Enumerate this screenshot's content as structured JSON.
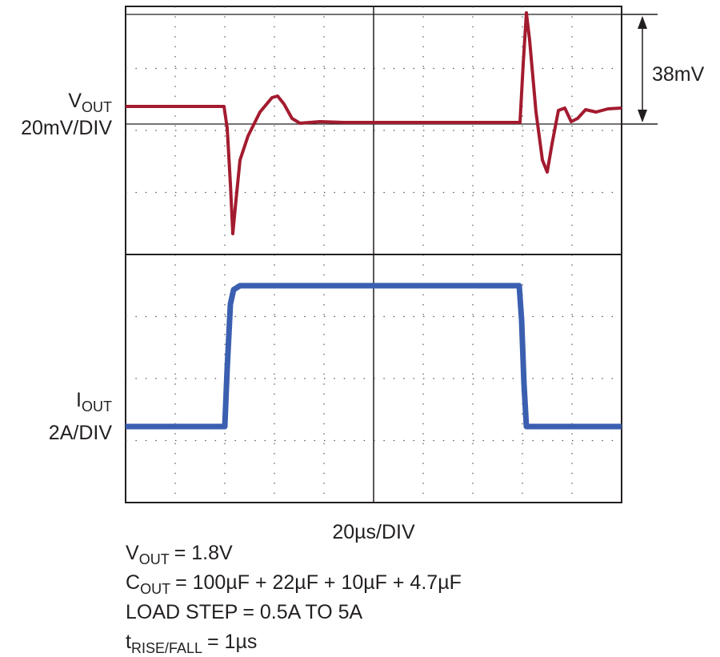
{
  "labels": {
    "vout": {
      "symbol": "V",
      "subscript": "OUT",
      "scale": "20mV/DIV"
    },
    "iout": {
      "symbol": "I",
      "subscript": "OUT",
      "scale": "2A/DIV"
    },
    "time_scale": "20µs/DIV",
    "annotation": "38mV"
  },
  "conditions": [
    {
      "symbol": "V",
      "subscript": "OUT",
      "text": "= 1.8V"
    },
    {
      "symbol": "C",
      "subscript": "OUT",
      "text": "= 100µF + 22µF + 10µF + 4.7µF"
    },
    {
      "symbol": "LOAD STEP",
      "subscript": "",
      "text": "= 0.5A TO 5A"
    },
    {
      "symbol": "t",
      "subscript": "RISE/FALL",
      "text": "= 1µs"
    }
  ]
}
